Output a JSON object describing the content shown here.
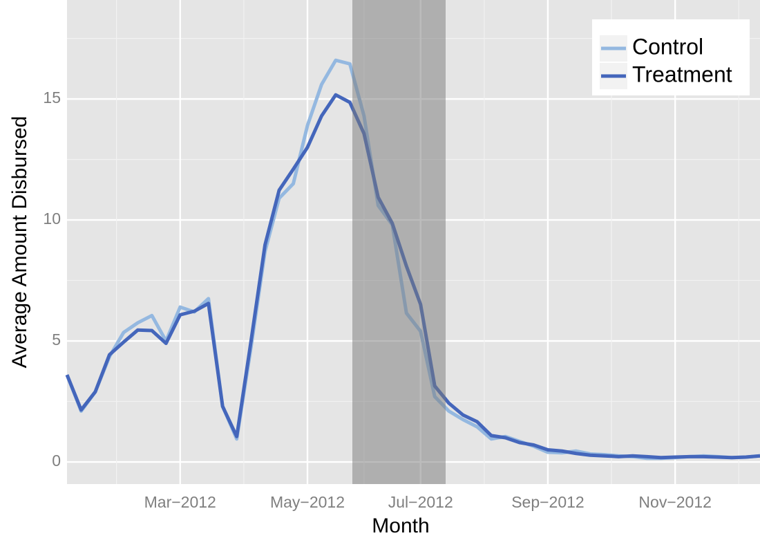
{
  "chart_data": {
    "type": "line",
    "x_label": "Month",
    "y_label": "Average Amount Disbursed",
    "categories": [
      null,
      null,
      null,
      null,
      null,
      null,
      null,
      null,
      "Mar−2012",
      null,
      null,
      null,
      null,
      null,
      null,
      null,
      null,
      "May−2012",
      null,
      null,
      null,
      null,
      null,
      null,
      null,
      "Jul−2012",
      null,
      null,
      null,
      null,
      null,
      null,
      null,
      null,
      "Sep−2012",
      null,
      null,
      null,
      null,
      null,
      null,
      null,
      null,
      "Nov−2012",
      null,
      null,
      null,
      null,
      null,
      null
    ],
    "series": [
      {
        "name": "Control",
        "color": "#94b8e0",
        "values": [
          3.6,
          2.1,
          2.9,
          4.35,
          5.35,
          5.75,
          6.05,
          5.0,
          6.4,
          6.2,
          6.75,
          2.3,
          0.95,
          4.7,
          8.7,
          10.9,
          11.5,
          13.9,
          15.6,
          16.6,
          16.45,
          14.3,
          10.6,
          9.8,
          6.15,
          5.4,
          2.7,
          2.1,
          1.75,
          1.45,
          0.95,
          1.05,
          0.85,
          0.65,
          0.4,
          0.38,
          0.45,
          0.33,
          0.3,
          0.25,
          0.22,
          0.15,
          0.15,
          0.18,
          0.22,
          0.25,
          0.22,
          0.18,
          0.2,
          0.25
        ]
      },
      {
        "name": "Treatment",
        "color": "#4466bb",
        "values": [
          3.6,
          2.15,
          2.9,
          4.43,
          4.95,
          5.45,
          5.43,
          4.9,
          6.08,
          6.23,
          6.55,
          2.3,
          1.05,
          4.95,
          8.97,
          11.23,
          12.1,
          13.0,
          14.3,
          15.17,
          14.86,
          13.57,
          10.94,
          9.86,
          8.09,
          6.51,
          3.14,
          2.43,
          1.94,
          1.66,
          1.09,
          1.0,
          0.8,
          0.7,
          0.5,
          0.45,
          0.35,
          0.28,
          0.25,
          0.22,
          0.25,
          0.22,
          0.18,
          0.2,
          0.22,
          0.22,
          0.2,
          0.18,
          0.2,
          0.25
        ]
      }
    ],
    "ylim": [
      -0.914,
      19.09
    ],
    "yticks": [
      0,
      5,
      10,
      15
    ],
    "grid": true,
    "legend": "top-right"
  }
}
